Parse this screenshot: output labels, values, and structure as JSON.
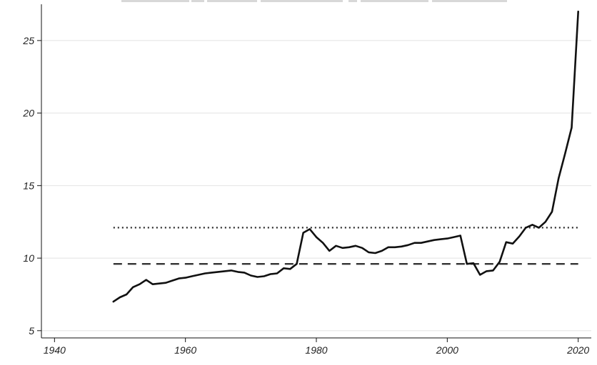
{
  "chart_data": {
    "type": "line",
    "title": "",
    "xlabel": "",
    "ylabel": "",
    "xlim": [
      1938,
      2022
    ],
    "ylim": [
      4.5,
      27.5
    ],
    "grid": true,
    "x_ticks": [
      1940,
      1960,
      1980,
      2000,
      2020
    ],
    "y_ticks": [
      5,
      10,
      15,
      20,
      25
    ],
    "series": [
      {
        "x": [
          1949,
          1950,
          1951,
          1952,
          1953,
          1954,
          1955,
          1956,
          1957,
          1958,
          1959,
          1960,
          1961,
          1962,
          1963,
          1964,
          1965,
          1966,
          1967,
          1968,
          1969,
          1970,
          1971,
          1972,
          1973,
          1974,
          1975,
          1976,
          1977,
          1978,
          1979,
          1980,
          1981,
          1982,
          1983,
          1984,
          1985,
          1986,
          1987,
          1988,
          1989,
          1990,
          1991,
          1992,
          1993,
          1994,
          1995,
          1996,
          1997,
          1998,
          1999,
          2000,
          2001,
          2002,
          2003,
          2004,
          2005,
          2006,
          2007,
          2008,
          2009,
          2010,
          2011,
          2012,
          2013,
          2014,
          2015,
          2016,
          2017,
          2018,
          2019,
          2020
        ],
        "values": [
          7.0,
          7.3,
          7.5,
          8.0,
          8.2,
          8.5,
          8.2,
          8.25,
          8.3,
          8.45,
          8.6,
          8.65,
          8.75,
          8.85,
          8.95,
          9.0,
          9.05,
          9.1,
          9.15,
          9.05,
          9.0,
          8.8,
          8.7,
          8.75,
          8.9,
          8.95,
          9.3,
          9.25,
          9.6,
          11.75,
          12.0,
          11.45,
          11.05,
          10.5,
          10.85,
          10.7,
          10.75,
          10.85,
          10.7,
          10.4,
          10.35,
          10.5,
          10.75,
          10.75,
          10.8,
          10.9,
          11.05,
          11.05,
          11.15,
          11.25,
          11.3,
          11.35,
          11.45,
          11.55,
          9.6,
          9.65,
          8.85,
          9.1,
          9.15,
          9.75,
          11.1,
          11.0,
          11.5,
          12.1,
          12.3,
          12.1,
          12.5,
          13.2,
          15.5,
          17.2,
          19.0,
          27.0
        ]
      }
    ],
    "reference_lines": [
      {
        "style": "dotted",
        "y": 12.1,
        "x_start": 1949,
        "x_end": 2020
      },
      {
        "style": "dashed",
        "y": 9.6,
        "x_start": 1949,
        "x_end": 2020
      }
    ],
    "colors": {
      "series": "#111111",
      "grid": "#e2e2e2",
      "axis": "#111111",
      "reference": "#333333"
    }
  }
}
